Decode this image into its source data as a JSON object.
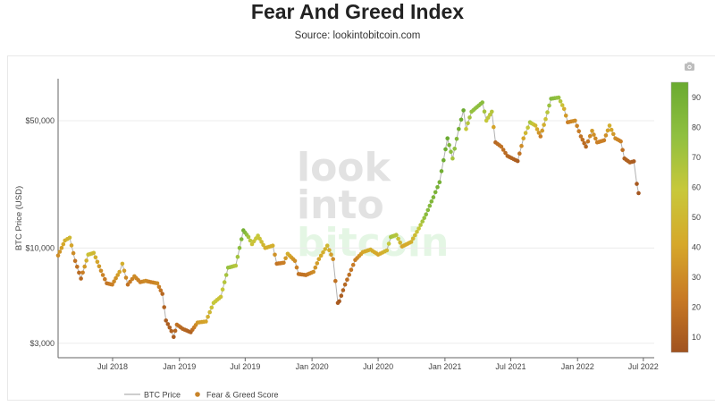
{
  "title": "Fear And Greed Index",
  "subtitle": "Source: lookintobitcoin.com",
  "watermark": {
    "lines": [
      "look",
      "into",
      "bitcoin"
    ]
  },
  "icons": {
    "camera": "camera-icon"
  },
  "chart_data": {
    "type": "scatter",
    "title": "Fear And Greed Index",
    "ylabel": "BTC Price (USD)",
    "xlabel": "",
    "y_scale": "log",
    "ylim": [
      2500,
      85000
    ],
    "xlim": [
      "2018-02-01",
      "2022-07-31"
    ],
    "y_ticks": [
      {
        "value": 3000,
        "label": "$3,000"
      },
      {
        "value": 10000,
        "label": "$10,000"
      },
      {
        "value": 50000,
        "label": "$50,000"
      }
    ],
    "x_ticks": [
      {
        "value": "2018-07-01",
        "label": "Jul 2018"
      },
      {
        "value": "2019-01-01",
        "label": "Jan 2019"
      },
      {
        "value": "2019-07-01",
        "label": "Jul 2019"
      },
      {
        "value": "2020-01-01",
        "label": "Jan 2020"
      },
      {
        "value": "2020-07-01",
        "label": "Jul 2020"
      },
      {
        "value": "2021-01-01",
        "label": "Jan 2021"
      },
      {
        "value": "2021-07-01",
        "label": "Jul 2021"
      },
      {
        "value": "2022-01-01",
        "label": "Jan 2022"
      },
      {
        "value": "2022-07-01",
        "label": "Jul 2022"
      }
    ],
    "colorbar": {
      "min": 5,
      "max": 95,
      "ticks": [
        10,
        20,
        30,
        40,
        50,
        60,
        70,
        80,
        90
      ],
      "colors": [
        "#a0521f",
        "#c87a25",
        "#d6a82a",
        "#c8c83a",
        "#90c040",
        "#6aaa30"
      ]
    },
    "legend": {
      "placement": "bottom-left",
      "entries": [
        "BTC Price",
        "Fear & Greed Score"
      ]
    },
    "line_color": "#b0b0b0",
    "grid": true,
    "series": [
      {
        "name": "BTC Price",
        "points": [
          [
            "2018-02-01",
            9100,
            30
          ],
          [
            "2018-02-20",
            11000,
            45
          ],
          [
            "2018-03-05",
            11400,
            50
          ],
          [
            "2018-03-20",
            8500,
            20
          ],
          [
            "2018-04-05",
            6800,
            15
          ],
          [
            "2018-04-25",
            9200,
            55
          ],
          [
            "2018-05-10",
            9400,
            50
          ],
          [
            "2018-05-30",
            7500,
            30
          ],
          [
            "2018-06-15",
            6400,
            20
          ],
          [
            "2018-06-30",
            6300,
            25
          ],
          [
            "2018-07-20",
            7400,
            40
          ],
          [
            "2018-07-28",
            8200,
            45
          ],
          [
            "2018-08-12",
            6300,
            20
          ],
          [
            "2018-08-30",
            7000,
            30
          ],
          [
            "2018-09-15",
            6500,
            25
          ],
          [
            "2018-09-30",
            6600,
            30
          ],
          [
            "2018-10-15",
            6500,
            25
          ],
          [
            "2018-11-01",
            6400,
            30
          ],
          [
            "2018-11-15",
            5600,
            15
          ],
          [
            "2018-11-25",
            4000,
            10
          ],
          [
            "2018-12-10",
            3500,
            12
          ],
          [
            "2018-12-16",
            3250,
            10
          ],
          [
            "2018-12-25",
            3800,
            20
          ],
          [
            "2019-01-10",
            3600,
            15
          ],
          [
            "2019-02-01",
            3450,
            12
          ],
          [
            "2019-02-20",
            3900,
            35
          ],
          [
            "2019-03-15",
            3950,
            40
          ],
          [
            "2019-04-05",
            5000,
            60
          ],
          [
            "2019-04-25",
            5400,
            55
          ],
          [
            "2019-05-15",
            7800,
            75
          ],
          [
            "2019-06-05",
            8000,
            65
          ],
          [
            "2019-06-26",
            12500,
            90
          ],
          [
            "2019-07-10",
            11500,
            70
          ],
          [
            "2019-07-20",
            10500,
            55
          ],
          [
            "2019-08-05",
            11700,
            60
          ],
          [
            "2019-08-25",
            10000,
            45
          ],
          [
            "2019-09-15",
            10300,
            45
          ],
          [
            "2019-09-26",
            8200,
            20
          ],
          [
            "2019-10-15",
            8300,
            25
          ],
          [
            "2019-10-26",
            9300,
            45
          ],
          [
            "2019-11-15",
            8500,
            30
          ],
          [
            "2019-11-25",
            7200,
            20
          ],
          [
            "2019-12-15",
            7100,
            20
          ],
          [
            "2020-01-05",
            7400,
            30
          ],
          [
            "2020-01-20",
            8700,
            40
          ],
          [
            "2020-02-12",
            10300,
            50
          ],
          [
            "2020-02-28",
            8700,
            30
          ],
          [
            "2020-03-12",
            5000,
            10
          ],
          [
            "2020-03-16",
            5100,
            8
          ],
          [
            "2020-04-01",
            6300,
            15
          ],
          [
            "2020-04-29",
            8600,
            25
          ],
          [
            "2020-05-20",
            9500,
            40
          ],
          [
            "2020-06-10",
            9800,
            45
          ],
          [
            "2020-07-01",
            9200,
            40
          ],
          [
            "2020-07-25",
            9700,
            50
          ],
          [
            "2020-08-05",
            11500,
            70
          ],
          [
            "2020-08-20",
            11800,
            65
          ],
          [
            "2020-09-05",
            10200,
            40
          ],
          [
            "2020-09-30",
            10800,
            45
          ],
          [
            "2020-10-21",
            12800,
            60
          ],
          [
            "2020-11-10",
            15300,
            80
          ],
          [
            "2020-11-30",
            19000,
            85
          ],
          [
            "2020-12-17",
            23000,
            90
          ],
          [
            "2021-01-08",
            40000,
            95
          ],
          [
            "2021-01-22",
            31000,
            70
          ],
          [
            "2021-02-08",
            45000,
            90
          ],
          [
            "2021-02-21",
            57000,
            95
          ],
          [
            "2021-02-28",
            45000,
            60
          ],
          [
            "2021-03-15",
            56000,
            75
          ],
          [
            "2021-04-14",
            63000,
            80
          ],
          [
            "2021-04-25",
            50000,
            60
          ],
          [
            "2021-05-10",
            56000,
            65
          ],
          [
            "2021-05-20",
            38000,
            15
          ],
          [
            "2021-06-05",
            36000,
            20
          ],
          [
            "2021-06-22",
            32000,
            15
          ],
          [
            "2021-07-20",
            30000,
            10
          ],
          [
            "2021-08-05",
            40000,
            40
          ],
          [
            "2021-08-23",
            49000,
            70
          ],
          [
            "2021-09-07",
            47000,
            50
          ],
          [
            "2021-09-21",
            41000,
            25
          ],
          [
            "2021-10-05",
            51000,
            55
          ],
          [
            "2021-10-20",
            66000,
            82
          ],
          [
            "2021-11-10",
            67000,
            75
          ],
          [
            "2021-11-25",
            58000,
            45
          ],
          [
            "2021-12-05",
            49000,
            25
          ],
          [
            "2021-12-25",
            50000,
            30
          ],
          [
            "2022-01-10",
            41000,
            20
          ],
          [
            "2022-01-24",
            36000,
            15
          ],
          [
            "2022-02-10",
            44000,
            35
          ],
          [
            "2022-02-24",
            38000,
            25
          ],
          [
            "2022-03-15",
            39000,
            25
          ],
          [
            "2022-03-30",
            47000,
            45
          ],
          [
            "2022-04-15",
            40000,
            30
          ],
          [
            "2022-04-30",
            38500,
            25
          ],
          [
            "2022-05-10",
            31000,
            12
          ],
          [
            "2022-05-25",
            29500,
            12
          ],
          [
            "2022-06-05",
            29900,
            10
          ],
          [
            "2022-06-13",
            22500,
            8
          ],
          [
            "2022-06-18",
            20000,
            7
          ]
        ]
      }
    ]
  }
}
